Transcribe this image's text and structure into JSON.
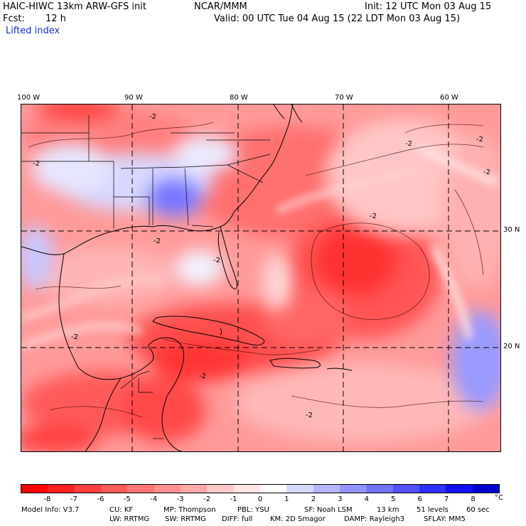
{
  "header": {
    "model": "HAIC-HIWC 13km ARW-GFS init",
    "org": "NCAR/MMM",
    "init": "Init: 12 UTC Mon 03 Aug 15",
    "fcst_label": "Fcst:",
    "fcst_value": "12 h",
    "valid": "Valid: 00 UTC Tue 04 Aug 15 (22 LDT Mon 03 Aug 15)",
    "field": "Lifted index"
  },
  "axes": {
    "lon_labels": [
      "100 W",
      "90 W",
      "80 W",
      "70 W",
      "60 W"
    ],
    "lat_labels": [
      "30 N",
      "20 N"
    ]
  },
  "contour_labels": [
    "-2",
    "-2",
    "-2",
    "-2",
    "-2",
    "-2",
    "-2",
    "-2",
    "-2",
    "-2",
    "-2"
  ],
  "colorbar": {
    "unit": "°C",
    "ticks": [
      "-8",
      "-7",
      "-6",
      "-5",
      "-4",
      "-3",
      "-2",
      "-1",
      "0",
      "1",
      "2",
      "3",
      "4",
      "5",
      "6",
      "7",
      "8"
    ],
    "colors": [
      "#ff0000",
      "#ff2020",
      "#ff4040",
      "#ff5b5b",
      "#ff7676",
      "#ff9090",
      "#ffabab",
      "#ffc8c8",
      "#ffe5e5",
      "#ffffff",
      "#d6d6ff",
      "#b4b4ff",
      "#9393ff",
      "#7272ff",
      "#5050ff",
      "#2f2fff",
      "#1010f0",
      "#0000d0"
    ]
  },
  "footer": {
    "line1": [
      "Model Info: V3.7",
      "CU: KF",
      "MP: Thompson",
      "PBL: YSU",
      "SF: Noah LSM",
      "13 km",
      "51 levels",
      "60 sec"
    ],
    "line2": [
      "LW: RRTMG",
      "SW: RRTMG",
      "DIFF: full",
      "KM: 2D Smagor",
      "DAMP: Rayleigh3",
      "SFLAY: MM5"
    ]
  }
}
